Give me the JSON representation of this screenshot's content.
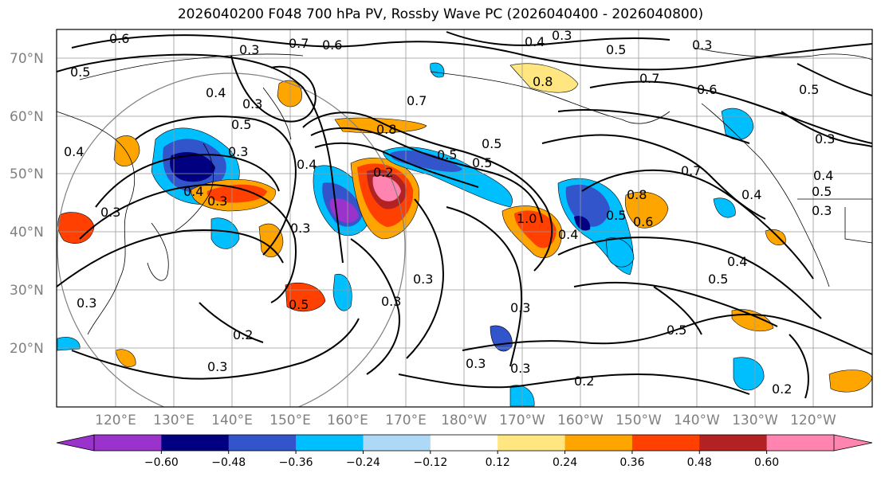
{
  "title": "2026040200 F048 700 hPa PV, Rossby Wave PC (2026040400 - 2026040800)",
  "lat_labels": [
    "70°N",
    "60°N",
    "50°N",
    "40°N",
    "30°N",
    "20°N"
  ],
  "lon_labels": [
    "120°E",
    "130°E",
    "140°E",
    "150°E",
    "160°E",
    "170°E",
    "180°W",
    "170°W",
    "160°W",
    "150°W",
    "140°W",
    "130°W",
    "120°W"
  ],
  "contour_labels": [
    "0.6",
    "0.3",
    "0.7",
    "0.6",
    "0.4",
    "0.3",
    "0.5",
    "0.3",
    "0.5",
    "0.4",
    "0.3",
    "0.8",
    "0.7",
    "0.6",
    "0.5",
    "0.4",
    "0.3",
    "0.5",
    "0.7",
    "0.8",
    "0.5",
    "0.5",
    "0.4",
    "0.3",
    "0.4",
    "0.3",
    "0.3",
    "0.2",
    "0.5",
    "1.0",
    "0.4",
    "0.8",
    "0.6",
    "0.7",
    "0.5",
    "0.4",
    "0.5",
    "0.3",
    "0.4",
    "0.5",
    "0.3",
    "0.3",
    "0.3",
    "0.5",
    "0.3",
    "0.2",
    "0.3",
    "0.3",
    "0.2",
    "0.2",
    "0.3",
    "0.4",
    "0.3",
    "0.5"
  ],
  "colorbar": {
    "ticks": [
      "−0.60",
      "−0.48",
      "−0.36",
      "−0.24",
      "−0.12",
      "0.12",
      "0.24",
      "0.36",
      "0.48",
      "0.60"
    ],
    "colors": [
      "#9933cc",
      "#000080",
      "#3355cc",
      "#00bfff",
      "#add8f6",
      "#ffffff",
      "#ffe680",
      "#ffa500",
      "#ff4000",
      "#b22222",
      "#ff85b0"
    ]
  },
  "palette": {
    "purple": "#9933cc",
    "navy": "#000080",
    "blue": "#3355cc",
    "sky": "#00bfff",
    "lightblue": "#add8f6",
    "yellow": "#ffe680",
    "orange": "#ffa500",
    "red": "#ff4000",
    "darkred": "#b22222",
    "pink": "#ff85b0"
  }
}
